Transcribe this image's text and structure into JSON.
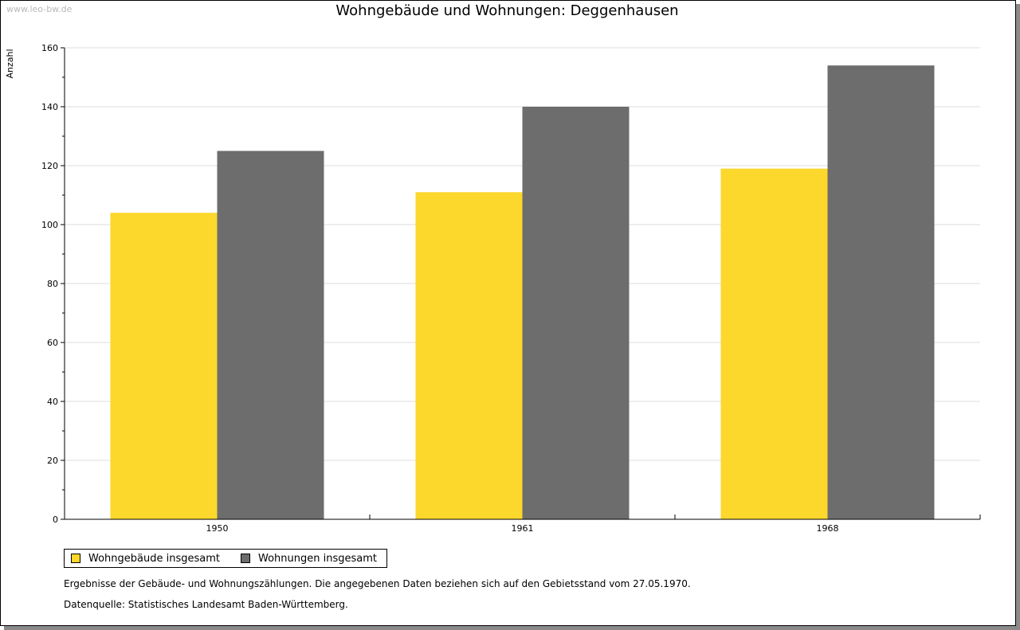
{
  "watermark": "www.leo-bw.de",
  "colors": {
    "series1": "#fcd72c",
    "series2": "#6d6d6d"
  },
  "chart_data": {
    "type": "bar",
    "title": "Wohngebäude und Wohnungen: Deggenhausen",
    "xlabel": "",
    "ylabel": "Anzahl",
    "categories": [
      "1950",
      "1961",
      "1968"
    ],
    "series": [
      {
        "name": "Wohngebäude insgesamt",
        "values": [
          104,
          111,
          119
        ]
      },
      {
        "name": "Wohnungen insgesamt",
        "values": [
          125,
          140,
          154
        ]
      }
    ],
    "ylim": [
      0,
      160
    ],
    "yticks": [
      0,
      20,
      40,
      60,
      80,
      100,
      120,
      140,
      160
    ],
    "grid": true,
    "legend": "bottom-left"
  },
  "notes": {
    "line1": "Ergebnisse der Gebäude- und Wohnungszählungen. Die angegebenen Daten beziehen sich auf den Gebietsstand vom 27.05.1970.",
    "line2": "Datenquelle: Statistisches Landesamt Baden-Württemberg."
  }
}
